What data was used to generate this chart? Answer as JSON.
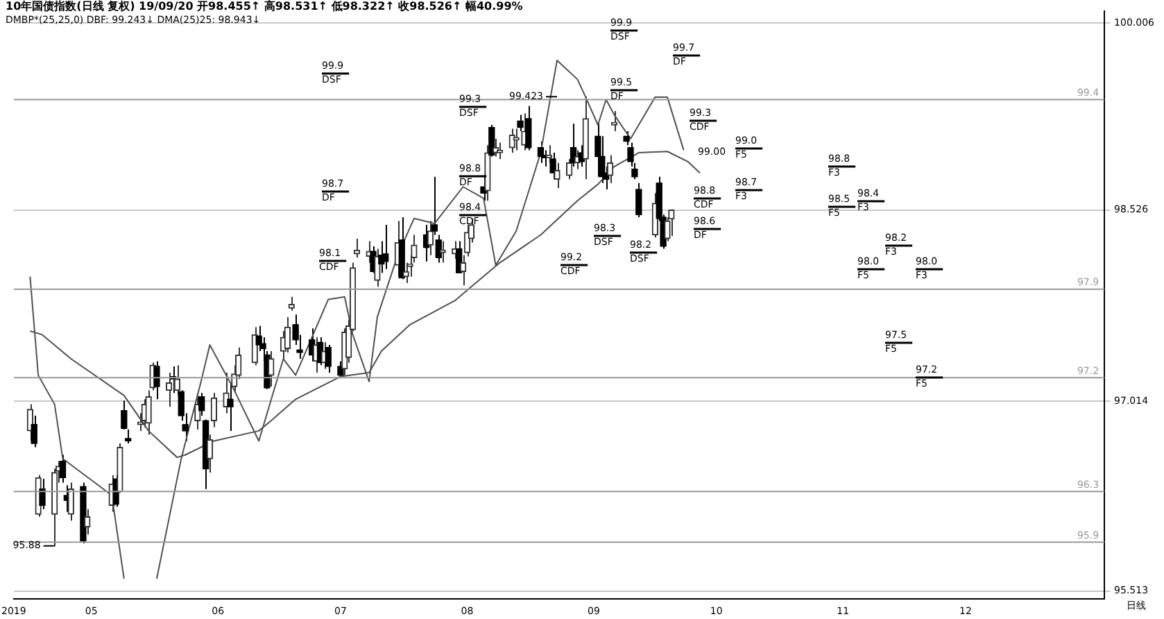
{
  "chart_data": {
    "type": "candlestick",
    "title": "10年国债指数(日线 复权) 19/09/20 开98.455↑ 高98.531↑ 低98.322↑ 收98.526↑ 幅40.99%",
    "subtitle": "DMBP*(25,25,0) DBF: 99.243↓ DMA(25)25: 98.943↓",
    "colors": [
      "#333333",
      "#000000",
      "#333333",
      "#000000",
      "#333333",
      "#333333",
      "#000000",
      "#000000",
      "#333333",
      "#000000",
      "#333333",
      "#333333",
      "#000000",
      "#333333",
      "#000000",
      "#000000",
      "#333333",
      "#333333",
      "#333333",
      "#333333",
      "#000000",
      "#333333",
      "#000000",
      "#333333",
      "#000000",
      "#000000",
      "#333333",
      "#000000",
      "#000000",
      "#333333",
      "#333333",
      "#333333",
      "#000000",
      "#333333",
      "#333333",
      "#333333",
      "#000000",
      "#000000",
      "#000000",
      "#333333",
      "#333333",
      "#333333",
      "#333333",
      "#000000",
      "#000000",
      "#000000",
      "#333333",
      "#000000",
      "#333333",
      "#000000",
      "#000000",
      "#333333",
      "#333333",
      "#333333",
      "#333333",
      "#333333",
      "#000000",
      "#333333",
      "#000000",
      "#000000",
      "#333333",
      "#000000",
      "#333333",
      "#333333",
      "#333333",
      "#000000",
      "#333333",
      "#000000",
      "#000000",
      "#333333",
      "#333333",
      "#000000",
      "#333333",
      "#333333",
      "#333333",
      "#000000",
      "#333333",
      "#000000",
      "#333333",
      "#333333",
      "#333333",
      "#333333",
      "#000000",
      "#333333",
      "#000000",
      "#000000",
      "#000000",
      "#333333",
      "#000000",
      "#333333",
      "#333333",
      "#000000",
      "#333333",
      "#000000",
      "#333333",
      "#000000",
      "#000000",
      "#000000",
      "#333333",
      "#333333",
      "#000000",
      "#000000",
      "#000000",
      "#000000",
      "#333333",
      "#000000",
      "#000000",
      "#333333",
      "#333333"
    ],
    "x": [
      "2019-04-16",
      "2019-04-17",
      "2019-04-18",
      "2019-04-19",
      "2019-04-22",
      "2019-04-23",
      "2019-04-24",
      "2019-04-25",
      "2019-04-26",
      "2019-04-29",
      "2019-04-30",
      "2019-05-06",
      "2019-05-07",
      "2019-05-08",
      "2019-05-09",
      "2019-05-10",
      "2019-05-13",
      "2019-05-14",
      "2019-05-15",
      "2019-05-16",
      "2019-05-17",
      "2019-05-20",
      "2019-05-21",
      "2019-05-22",
      "2019-05-23",
      "2019-05-24",
      "2019-05-27",
      "2019-05-28",
      "2019-05-29",
      "2019-05-30",
      "2019-05-31",
      "2019-06-03",
      "2019-06-04",
      "2019-06-05",
      "2019-06-06",
      "2019-06-10",
      "2019-06-11",
      "2019-06-12",
      "2019-06-13",
      "2019-06-14",
      "2019-06-17",
      "2019-06-18",
      "2019-06-19",
      "2019-06-20",
      "2019-06-21",
      "2019-06-24",
      "2019-06-25",
      "2019-06-26",
      "2019-06-27",
      "2019-06-28",
      "2019-07-01",
      "2019-07-02",
      "2019-07-03",
      "2019-07-04",
      "2019-07-05",
      "2019-07-08",
      "2019-07-09",
      "2019-07-10",
      "2019-07-11",
      "2019-07-12",
      "2019-07-15",
      "2019-07-16",
      "2019-07-17",
      "2019-07-18",
      "2019-07-19",
      "2019-07-22",
      "2019-07-23",
      "2019-07-24",
      "2019-07-25",
      "2019-07-26",
      "2019-07-29",
      "2019-07-30",
      "2019-07-31",
      "2019-08-01",
      "2019-08-02",
      "2019-08-05",
      "2019-08-06",
      "2019-08-07",
      "2019-08-08",
      "2019-08-09",
      "2019-08-12",
      "2019-08-13",
      "2019-08-14",
      "2019-08-15",
      "2019-08-16",
      "2019-08-19",
      "2019-08-20",
      "2019-08-21",
      "2019-08-22",
      "2019-08-23",
      "2019-08-26",
      "2019-08-27",
      "2019-08-28",
      "2019-08-29",
      "2019-08-30",
      "2019-09-02",
      "2019-09-03",
      "2019-09-04",
      "2019-09-05",
      "2019-09-06",
      "2019-09-09",
      "2019-09-10",
      "2019-09-11",
      "2019-09-12",
      "2019-09-16",
      "2019-09-17",
      "2019-09-18",
      "2019-09-19",
      "2019-09-20"
    ],
    "ohlc": [
      [
        96.78,
        96.99,
        96.7,
        96.95
      ],
      [
        96.83,
        96.9,
        96.65,
        96.68
      ],
      [
        96.12,
        96.43,
        96.1,
        96.41
      ],
      [
        96.32,
        96.4,
        96.16,
        96.19
      ],
      [
        96.12,
        96.48,
        95.87,
        96.45
      ],
      [
        96.46,
        96.54,
        96.37,
        96.5
      ],
      [
        96.54,
        96.59,
        96.37,
        96.41
      ],
      [
        96.27,
        96.35,
        96.14,
        96.23
      ],
      [
        96.12,
        96.37,
        96.07,
        96.32
      ],
      [
        96.34,
        96.37,
        95.89,
        95.91
      ],
      [
        96.02,
        96.16,
        95.96,
        96.1
      ],
      [
        96.19,
        96.43,
        96.14,
        96.36
      ],
      [
        96.4,
        96.43,
        96.18,
        96.2
      ],
      [
        96.3,
        96.68,
        96.29,
        96.65
      ],
      [
        96.94,
        97.02,
        96.79,
        96.8
      ],
      [
        96.72,
        96.79,
        96.68,
        96.7
      ],
      [
        96.83,
        96.92,
        96.78,
        96.85
      ],
      [
        96.86,
        97.03,
        96.81,
        96.99
      ],
      [
        96.84,
        97.1,
        96.75,
        97.05
      ],
      [
        97.12,
        97.32,
        97.1,
        97.3
      ],
      [
        97.29,
        97.33,
        97.03,
        97.13
      ],
      [
        97.1,
        97.24,
        96.97,
        97.16
      ],
      [
        97.21,
        97.29,
        97.08,
        97.19
      ],
      [
        97.1,
        97.3,
        97.06,
        97.19
      ],
      [
        97.09,
        97.1,
        96.86,
        96.9
      ],
      [
        96.83,
        96.92,
        96.7,
        96.78
      ],
      [
        96.86,
        97.08,
        96.79,
        96.99
      ],
      [
        97.05,
        97.08,
        96.9,
        96.94
      ],
      [
        96.86,
        96.87,
        96.32,
        96.48
      ],
      [
        96.56,
        96.75,
        96.45,
        96.71
      ],
      [
        96.86,
        97.08,
        96.81,
        97.04
      ],
      [
        96.97,
        97.24,
        96.92,
        97.08
      ],
      [
        97.03,
        97.16,
        96.78,
        96.97
      ],
      [
        97.13,
        97.3,
        97.08,
        97.23
      ],
      [
        97.22,
        97.44,
        97.19,
        97.38
      ],
      [
        97.32,
        97.6,
        97.3,
        97.54
      ],
      [
        97.53,
        97.61,
        97.41,
        97.46
      ],
      [
        97.47,
        97.52,
        97.33,
        97.43
      ],
      [
        97.38,
        97.41,
        97.11,
        97.12
      ],
      [
        97.22,
        97.41,
        97.13,
        97.35
      ],
      [
        97.41,
        97.57,
        97.35,
        97.52
      ],
      [
        97.43,
        97.68,
        97.4,
        97.6
      ],
      [
        97.75,
        97.84,
        97.73,
        97.78
      ],
      [
        97.62,
        97.7,
        97.46,
        97.5
      ],
      [
        97.42,
        97.54,
        97.35,
        97.4
      ],
      [
        97.5,
        97.59,
        97.33,
        97.38
      ],
      [
        97.33,
        97.52,
        97.24,
        97.46
      ],
      [
        97.48,
        97.52,
        97.3,
        97.32
      ],
      [
        97.32,
        97.48,
        97.27,
        97.41
      ],
      [
        97.44,
        97.46,
        97.24,
        97.29
      ],
      [
        97.29,
        97.33,
        97.21,
        97.22
      ],
      [
        97.27,
        97.59,
        97.22,
        97.56
      ],
      [
        97.36,
        97.66,
        97.32,
        97.61
      ],
      [
        97.58,
        98.11,
        97.57,
        98.07
      ],
      [
        98.18,
        98.3,
        98.15,
        98.21
      ],
      [
        98.16,
        98.28,
        98.11,
        98.2
      ],
      [
        98.2,
        98.24,
        98.03,
        98.04
      ],
      [
        97.97,
        98.22,
        97.92,
        98.16
      ],
      [
        98.17,
        98.28,
        98.03,
        98.1
      ],
      [
        98.18,
        98.41,
        98.06,
        98.12
      ],
      [
        98.09,
        98.44,
        98.0,
        98.27
      ],
      [
        98.29,
        98.47,
        97.98,
        97.99
      ],
      [
        98.0,
        98.11,
        97.95,
        98.04
      ],
      [
        98.08,
        98.17,
        98.0,
        98.1
      ],
      [
        98.15,
        98.33,
        98.11,
        98.25
      ],
      [
        98.33,
        98.41,
        98.12,
        98.23
      ],
      [
        98.25,
        98.44,
        98.17,
        98.36
      ],
      [
        98.41,
        98.79,
        98.33,
        98.36
      ],
      [
        98.29,
        98.33,
        98.11,
        98.15
      ],
      [
        98.19,
        98.28,
        98.11,
        98.21
      ],
      [
        98.18,
        98.28,
        98.14,
        98.22
      ],
      [
        98.22,
        98.28,
        98.03,
        98.03
      ],
      [
        98.04,
        98.17,
        97.93,
        98.11
      ],
      [
        98.19,
        98.41,
        98.16,
        98.35
      ],
      [
        98.3,
        98.46,
        98.27,
        98.41
      ],
      [
        98.71,
        98.79,
        98.6,
        98.66
      ],
      [
        98.68,
        99.04,
        98.6,
        98.98
      ],
      [
        99.18,
        99.2,
        98.95,
        98.96
      ],
      [
        98.98,
        99.09,
        98.95,
        99.02
      ],
      [
        98.98,
        99.06,
        98.93,
        99.0
      ],
      [
        99.02,
        99.17,
        98.98,
        99.12
      ],
      [
        99.08,
        99.17,
        99.0,
        99.1
      ],
      [
        99.23,
        99.28,
        99.15,
        99.18
      ],
      [
        99.04,
        99.29,
        99.0,
        99.15
      ],
      [
        99.25,
        99.35,
        99.0,
        99.02
      ],
      [
        99.02,
        99.07,
        98.9,
        98.95
      ],
      [
        98.96,
        99.0,
        98.87,
        98.94
      ],
      [
        98.94,
        99.04,
        98.9,
        98.96
      ],
      [
        98.93,
        98.98,
        98.77,
        98.82
      ],
      [
        98.77,
        98.9,
        98.7,
        98.84
      ],
      [
        98.8,
        98.93,
        98.77,
        98.9
      ],
      [
        99.02,
        99.21,
        98.87,
        98.9
      ],
      [
        98.9,
        99.0,
        98.85,
        98.95
      ],
      [
        98.98,
        99.04,
        98.87,
        98.91
      ],
      [
        98.93,
        99.423,
        98.77,
        99.25
      ],
      [
        99.11,
        99.22,
        98.79,
        98.95
      ],
      [
        98.95,
        99.11,
        98.74,
        98.79
      ],
      [
        98.82,
        98.87,
        98.69,
        98.77
      ],
      [
        98.8,
        98.96,
        98.74,
        98.9
      ],
      [
        99.2,
        99.31,
        99.15,
        99.22
      ],
      [
        99.11,
        99.15,
        99.04,
        99.07
      ],
      [
        99.02,
        99.06,
        98.87,
        98.91
      ],
      [
        98.85,
        98.9,
        98.77,
        98.79
      ],
      [
        98.69,
        98.74,
        98.47,
        98.49
      ],
      [
        98.33,
        98.66,
        98.31,
        98.58
      ],
      [
        98.74,
        98.79,
        98.44,
        98.46
      ],
      [
        98.47,
        98.49,
        98.22,
        98.24
      ],
      [
        98.3,
        98.47,
        98.28,
        98.44
      ],
      [
        98.455,
        98.531,
        98.322,
        98.526
      ]
    ],
    "series": [
      {
        "type": "line",
        "color": "#505050",
        "x": [
          "2019-04-16",
          "2019-04-18",
          "2019-04-22",
          "2019-04-24",
          "2019-05-06",
          "2019-05-09",
          "2019-05-13",
          "2019-05-17",
          "2019-05-23",
          "2019-05-28",
          "2019-05-30",
          "2019-06-05",
          "2019-06-11",
          "2019-06-17",
          "2019-06-20",
          "2019-06-28",
          "2019-07-02",
          "2019-07-04",
          "2019-07-08",
          "2019-07-10",
          "2019-07-15",
          "2019-07-19",
          "2019-07-24",
          "2019-07-31",
          "2019-08-05",
          "2019-08-08",
          "2019-08-13",
          "2019-08-19",
          "2019-08-23",
          "2019-08-28",
          "2019-08-30",
          "2019-09-02",
          "2019-09-04",
          "2019-09-06",
          "2019-09-10",
          "2019-09-16",
          "2019-09-19",
          "2019-09-23"
        ],
        "values": [
          98.0,
          97.22,
          96.99,
          96.56,
          96.27,
          95.61,
          null,
          95.61,
          96.56,
          97.19,
          97.46,
          97.1,
          96.7,
          97.35,
          97.22,
          97.82,
          97.84,
          97.54,
          97.17,
          97.68,
          98.17,
          98.46,
          98.42,
          98.71,
          98.62,
          98.09,
          98.36,
          98.98,
          99.71,
          99.56,
          99.42,
          99.2,
          99.4,
          99.28,
          99.09,
          99.42,
          99.42,
          99.0
        ]
      },
      {
        "type": "line",
        "color": "#505050",
        "x": [
          "2019-04-16",
          "2019-04-19",
          "2019-04-26",
          "2019-05-09",
          "2019-05-15",
          "2019-05-22",
          "2019-05-24",
          "2019-05-31",
          "2019-06-11",
          "2019-06-14",
          "2019-06-20",
          "2019-07-01",
          "2019-07-08",
          "2019-07-11",
          "2019-07-18",
          "2019-07-29",
          "2019-08-02",
          "2019-08-09",
          "2019-08-19",
          "2019-08-28",
          "2019-09-02",
          "2019-09-06",
          "2019-09-12",
          "2019-09-19",
          "2019-09-24",
          "2019-09-27"
        ],
        "values": [
          97.57,
          97.54,
          97.35,
          97.06,
          96.78,
          96.57,
          96.59,
          96.7,
          96.78,
          96.86,
          97.03,
          97.21,
          97.24,
          97.41,
          97.62,
          97.81,
          97.92,
          98.11,
          98.33,
          98.6,
          98.73,
          98.87,
          98.98,
          98.99,
          98.91,
          98.82
        ]
      }
    ],
    "xlim": [
      "2019-04-12",
      "2020-01-04"
    ],
    "xticks": [
      {
        "value": "2019-04-12",
        "label": "2019"
      },
      {
        "value": "2019-05-01",
        "label": "05"
      },
      {
        "value": "2019-06-01",
        "label": "06"
      },
      {
        "value": "2019-07-01",
        "label": "07"
      },
      {
        "value": "2019-08-01",
        "label": "08"
      },
      {
        "value": "2019-09-01",
        "label": "09"
      },
      {
        "value": "2019-10-01",
        "label": "10"
      },
      {
        "value": "2019-11-01",
        "label": "11"
      },
      {
        "value": "2019-12-01",
        "label": "12"
      }
    ],
    "ylim": [
      95.45,
      100.1
    ],
    "yticks": [
      100.006,
      98.526,
      97.014,
      95.513
    ],
    "grid": "y",
    "ref_lines": [
      {
        "axis": "y",
        "value": 99.4,
        "label": "99.4",
        "color": "#999999"
      },
      {
        "axis": "y",
        "value": 97.9,
        "label": "97.9",
        "color": "#999999"
      },
      {
        "axis": "y",
        "value": 97.2,
        "label": "97.2",
        "color": "#999999"
      },
      {
        "axis": "y",
        "value": 96.3,
        "label": "96.3",
        "color": "#999999"
      },
      {
        "axis": "y",
        "value": 95.9,
        "label": "95.9",
        "color": "#999999"
      }
    ],
    "annotations": [
      "99.9\nDSF",
      "98.7\nDF",
      "98.1\nCDF",
      "99.3\nDSF",
      "98.8\nDF",
      "98.4\nCDF",
      "99.9\nDSF",
      "99.5\nDF",
      "99.2\nCDF",
      "98.3\nDSF",
      "98.8\nCDF",
      "98.6\nDF",
      "98.2\nDSF",
      "99.7\nDF",
      "99.3\nCDF",
      {
        "text": "99.423",
        "x": "2019-08-23",
        "y": 99.423
      },
      {
        "text": "95.88",
        "x": "2019-04-22",
        "y": 95.87
      },
      "99.00",
      "99.0\nF5",
      "98.7\nF3",
      "98.8\nF3",
      "98.5\nF5",
      "98.4\nF3",
      "98.2\nF3",
      "98.0\nF5",
      "98.0\nF3",
      "97.5\nF5",
      "97.2\nF5",
      "日线"
    ]
  }
}
